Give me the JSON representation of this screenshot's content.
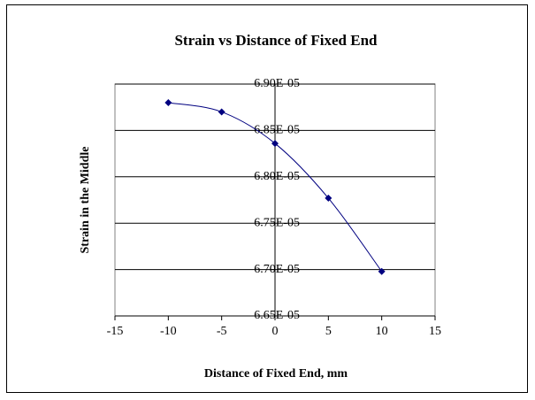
{
  "chart_data": {
    "type": "scatter",
    "title": "Strain vs Distance of Fixed End",
    "x_label": "Distance of Fixed End, mm",
    "y_label": "Strain in the Middle",
    "x": [
      -10,
      -5,
      0,
      5,
      10
    ],
    "values": [
      6.88e-05,
      6.87e-05,
      6.836e-05,
      6.777e-05,
      6.698e-05
    ],
    "color": "#000080",
    "smooth": true,
    "grid": true,
    "xlim": [
      -15,
      15
    ],
    "xticks": [
      -15,
      -10,
      -5,
      0,
      5,
      10,
      15
    ],
    "ylim": [
      6.65e-05,
      6.9e-05
    ],
    "yticks": [
      {
        "value": 6.65e-05,
        "label": "6.65E-05"
      },
      {
        "value": 6.7e-05,
        "label": "6.70E-05"
      },
      {
        "value": 6.75e-05,
        "label": "6.75E-05"
      },
      {
        "value": 6.8e-05,
        "label": "6.80E-05"
      },
      {
        "value": 6.85e-05,
        "label": "6.85E-05"
      },
      {
        "value": 6.9e-05,
        "label": "6.90E-05"
      }
    ]
  }
}
